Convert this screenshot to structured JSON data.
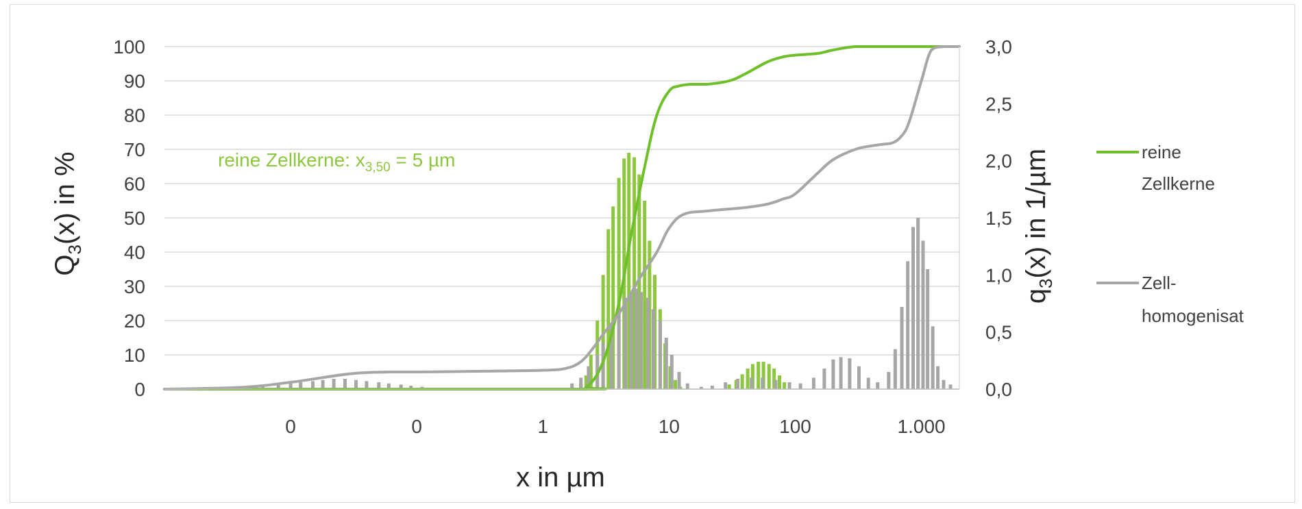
{
  "chart_data": {
    "type": "bar+line",
    "title": "",
    "xlabel": "x in µm",
    "ylabel_left": "Q3(x) in %",
    "ylabel_right": "q3(x) in 1/µm",
    "xscale": "log",
    "xlim": [
      0.001,
      2000
    ],
    "ylim_left": [
      0,
      100
    ],
    "ylim_right": [
      0,
      3.0
    ],
    "grid": true,
    "legend_position": "right",
    "x_tick_labels": [
      "0",
      "0",
      "1",
      "10",
      "100",
      "1.000"
    ],
    "x_tick_values": [
      0.01,
      0.1,
      1,
      10,
      100,
      1000
    ],
    "y_left_ticks": [
      "0",
      "10",
      "20",
      "30",
      "40",
      "50",
      "60",
      "70",
      "80",
      "90",
      "100"
    ],
    "y_right_ticks": [
      "0,0",
      "0,5",
      "1,0",
      "1,5",
      "2,0",
      "2,5",
      "3,0"
    ],
    "annotation": {
      "prefix": "reine Zellkerne: x",
      "subscript": "3,50",
      "suffix": " = 5 µm",
      "color": "#8dc63f"
    },
    "legend": [
      {
        "line1": "reine",
        "line2": "Zellkerne",
        "color": "#6fbf2a"
      },
      {
        "line1": "Zell-",
        "line2": "homogenisat",
        "color": "#a6a6a6"
      }
    ],
    "series": [
      {
        "name": "reine Zellkerne",
        "type": "line",
        "axis": "left",
        "color": "#6fbf2a",
        "x": [
          0.001,
          1.6,
          2.2,
          3.0,
          4.0,
          5.0,
          6.5,
          8.0,
          10,
          12,
          15,
          20,
          30,
          40,
          60,
          80,
          100,
          150,
          200,
          300,
          500,
          1000,
          2000
        ],
        "y": [
          0,
          0,
          0.5,
          8,
          25,
          45,
          66,
          80,
          87,
          88.5,
          89,
          89,
          90,
          92,
          95.5,
          97,
          97.5,
          98,
          99,
          100,
          100,
          100,
          100
        ]
      },
      {
        "name": "Zell- homogenisat",
        "type": "line",
        "axis": "left",
        "color": "#a6a6a6",
        "x": [
          0.001,
          0.004,
          0.01,
          0.03,
          0.06,
          0.1,
          0.5,
          1.0,
          1.5,
          2.0,
          2.5,
          3,
          4,
          5,
          6,
          8,
          10,
          13,
          20,
          40,
          60,
          80,
          100,
          150,
          200,
          300,
          400,
          500,
          600,
          700,
          800,
          1000,
          1200,
          1500,
          2000
        ],
        "y": [
          0,
          0.5,
          2,
          4.5,
          5,
          5,
          5.3,
          5.5,
          6,
          8,
          12,
          16,
          22,
          28,
          33,
          40,
          47,
          51,
          52,
          53,
          54,
          55.5,
          57,
          63,
          67,
          70,
          71,
          71.5,
          72,
          74,
          78,
          90,
          99,
          100,
          100
        ]
      },
      {
        "name": "reine Zellkerne",
        "type": "bar",
        "axis": "right",
        "color": "#8dc63f",
        "x": [
          2.0,
          2.2,
          2.4,
          2.7,
          3.0,
          3.3,
          3.6,
          4.0,
          4.4,
          4.8,
          5.3,
          5.8,
          6.4,
          7.0,
          7.7,
          8.5,
          9.3,
          10.2,
          11.2,
          12.3,
          30,
          34,
          38,
          42,
          46,
          51,
          56,
          62,
          68,
          75,
          82
        ],
        "y": [
          0.05,
          0.12,
          0.3,
          0.6,
          1.0,
          1.4,
          1.6,
          1.85,
          2.02,
          2.07,
          2.03,
          1.88,
          1.65,
          1.3,
          1.0,
          0.7,
          0.4,
          0.2,
          0.08,
          0.02,
          0.04,
          0.08,
          0.13,
          0.18,
          0.22,
          0.24,
          0.24,
          0.22,
          0.18,
          0.12,
          0.06
        ]
      },
      {
        "name": "Zell- homogenisat",
        "type": "bar",
        "axis": "right",
        "color": "#a6a6a6",
        "x": [
          0.004,
          0.006,
          0.008,
          0.01,
          0.012,
          0.015,
          0.018,
          0.022,
          0.027,
          0.033,
          0.04,
          0.05,
          0.06,
          0.075,
          0.09,
          0.11,
          1.7,
          2.0,
          2.3,
          2.7,
          3.0,
          3.5,
          4.0,
          4.5,
          5.0,
          5.5,
          6.0,
          6.8,
          7.5,
          8.5,
          9.5,
          10.5,
          12,
          14,
          18,
          22,
          28,
          35,
          45,
          55,
          70,
          90,
          110,
          140,
          170,
          200,
          230,
          270,
          320,
          380,
          450,
          550,
          620,
          700,
          780,
          860,
          940,
          1030,
          1120,
          1230,
          1350,
          1500,
          1700
        ],
        "y": [
          0.02,
          0.03,
          0.04,
          0.05,
          0.06,
          0.07,
          0.08,
          0.09,
          0.09,
          0.08,
          0.07,
          0.06,
          0.05,
          0.04,
          0.03,
          0.02,
          0.05,
          0.1,
          0.2,
          0.3,
          0.4,
          0.55,
          0.7,
          0.8,
          0.85,
          0.88,
          0.85,
          0.8,
          0.7,
          0.6,
          0.45,
          0.3,
          0.15,
          0.05,
          0.02,
          0.03,
          0.06,
          0.09,
          0.1,
          0.1,
          0.08,
          0.06,
          0.05,
          0.1,
          0.18,
          0.26,
          0.28,
          0.27,
          0.2,
          0.1,
          0.06,
          0.15,
          0.35,
          0.72,
          1.12,
          1.42,
          1.5,
          1.3,
          1.05,
          0.55,
          0.2,
          0.08,
          0.04
        ]
      }
    ]
  }
}
